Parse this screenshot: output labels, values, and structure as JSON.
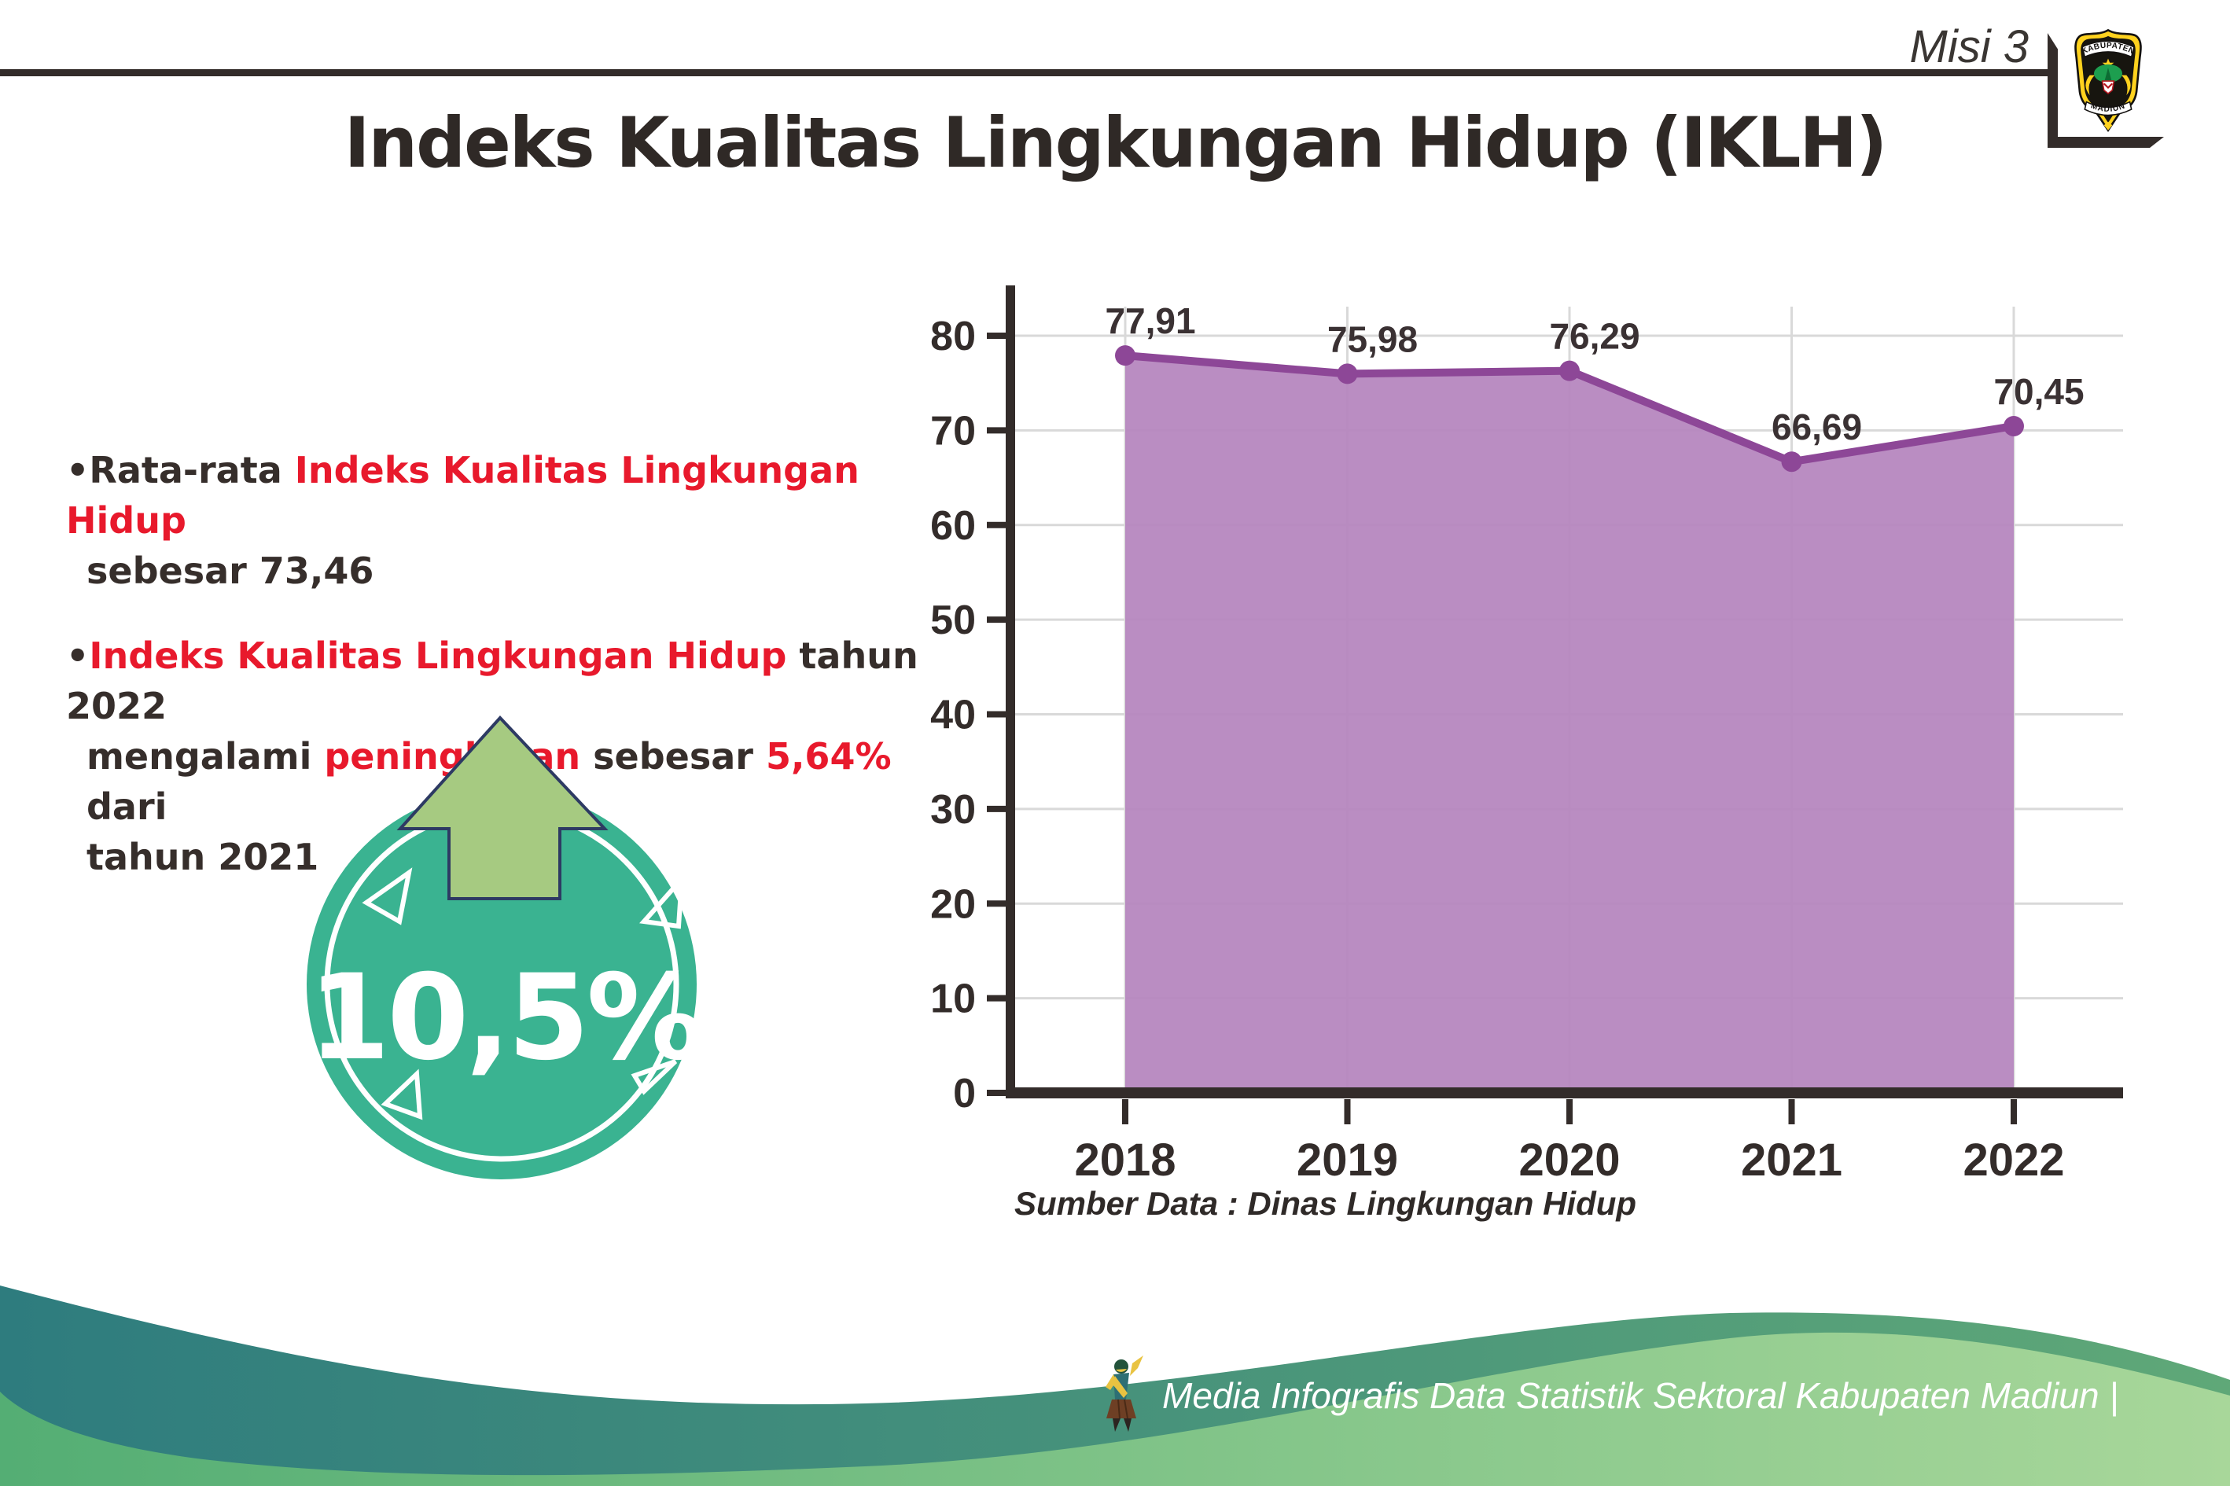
{
  "header": {
    "misi": "Misi 3",
    "logo_top": "KABUPATEN",
    "logo_bottom": "MADIUN"
  },
  "title": "Indeks Kualitas Lingkungan Hidup (IKLH)",
  "bullets": {
    "b1": {
      "seg1": "•Rata-rata ",
      "seg2": "Indeks Kualitas Lingkungan Hidup",
      "seg3": "sebesar 73,46"
    },
    "b2": {
      "seg1": "•",
      "seg2": "Indeks Kualitas Lingkungan Hidup",
      "seg3": " tahun 2022",
      "seg4": "mengalami ",
      "seg5": "peningkatan",
      "seg6": " sebesar ",
      "seg7": "5,64%",
      "seg8": " dari",
      "seg9": "tahun 2021"
    }
  },
  "badge": {
    "value": "10,5%"
  },
  "chart_data": {
    "type": "area",
    "categories": [
      "2018",
      "2019",
      "2020",
      "2021",
      "2022"
    ],
    "values": [
      77.91,
      75.98,
      76.29,
      66.69,
      70.45
    ],
    "value_labels": [
      "77,91",
      "75,98",
      "76,29",
      "66,69",
      "70,45"
    ],
    "y_ticks": [
      0,
      10,
      20,
      30,
      40,
      50,
      60,
      70,
      80
    ],
    "ylim": [
      0,
      80
    ],
    "grid": true,
    "legend": "none",
    "source": "Sumber Data : Dinas Lingkungan Hidup",
    "colors": {
      "fill": "#b584bd",
      "line": "#8d4797",
      "grid": "#d9d9d9",
      "axis": "#332c2a"
    }
  },
  "footer": {
    "caption": "Media Infografis Data Statistik Sektoral Kabupaten Madiun |"
  }
}
